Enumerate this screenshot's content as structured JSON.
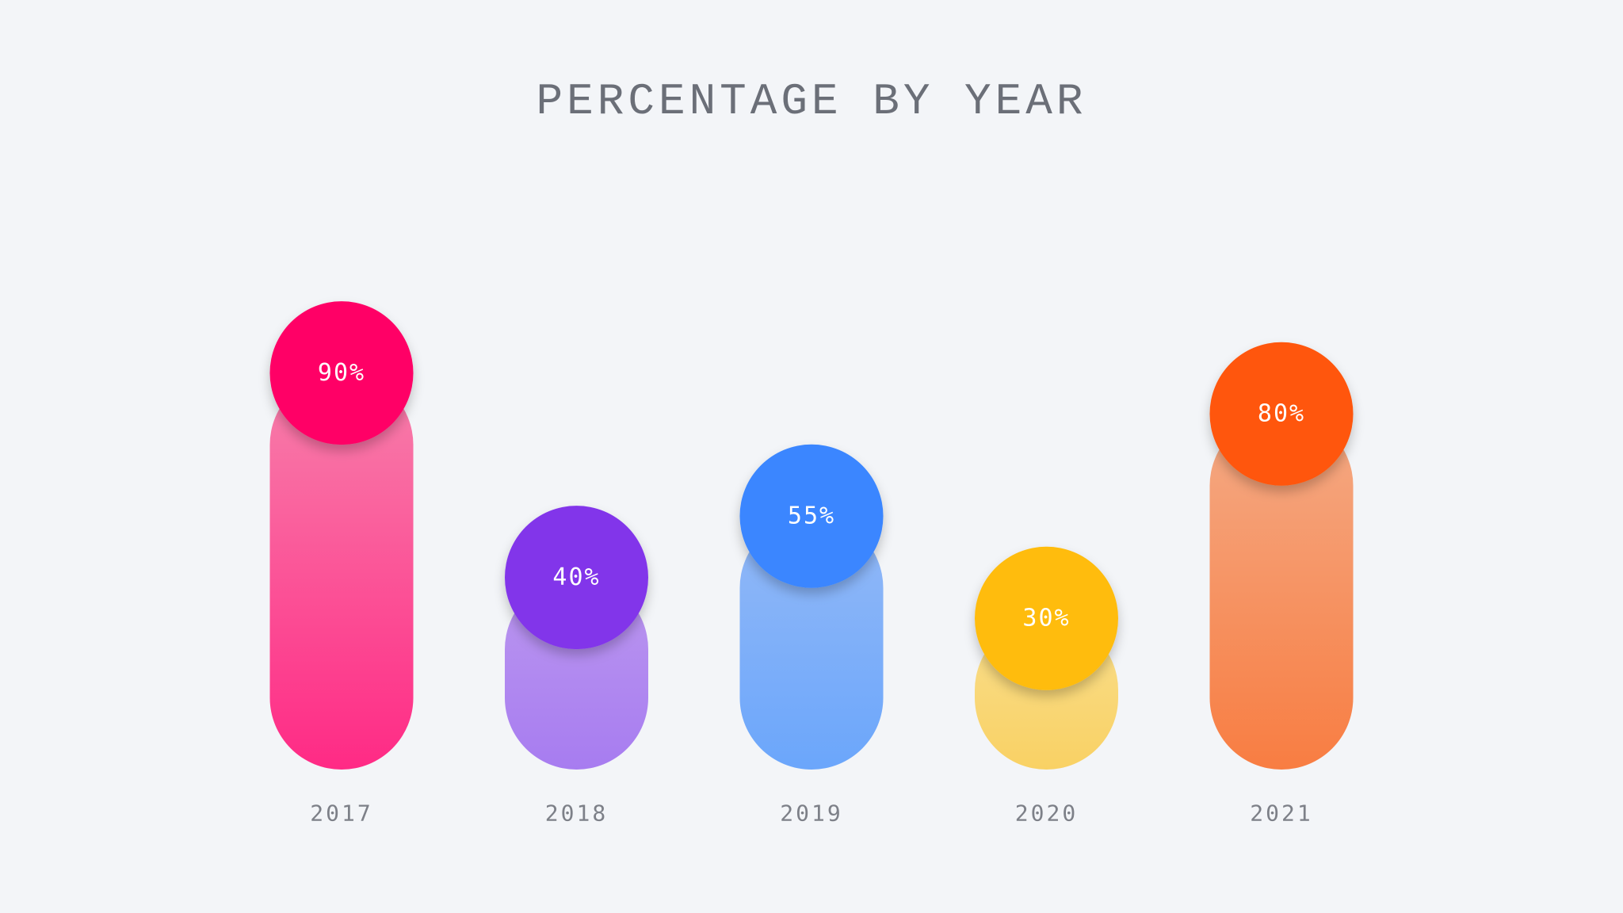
{
  "chart_data": {
    "type": "bar",
    "title": "PERCENTAGE BY YEAR",
    "categories": [
      "2017",
      "2018",
      "2019",
      "2020",
      "2021"
    ],
    "values": [
      90,
      40,
      55,
      30,
      80
    ],
    "value_labels": [
      "90%",
      "40%",
      "55%",
      "30%",
      "80%"
    ],
    "ylim": [
      0,
      100
    ],
    "grid": false,
    "legend": "none",
    "colors": [
      {
        "circle": "#ff0066",
        "bar_top": "#f780ab",
        "bar_bottom": "#ff2a85"
      },
      {
        "circle": "#8236ea",
        "bar_top": "#bb97ef",
        "bar_bottom": "#a77cf0"
      },
      {
        "circle": "#3a86ff",
        "bar_top": "#93b9f7",
        "bar_bottom": "#6ba6fb"
      },
      {
        "circle": "#ffbc0f",
        "bar_top": "#f9de8c",
        "bar_bottom": "#f9d164"
      },
      {
        "circle": "#ff570a",
        "bar_top": "#f4aa85",
        "bar_bottom": "#f87d42"
      }
    ]
  }
}
